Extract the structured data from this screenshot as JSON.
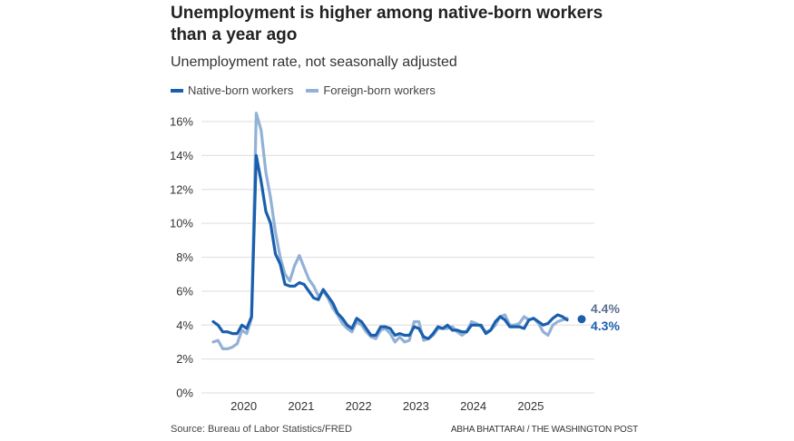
{
  "title": "Unemployment is higher among native-born workers than a year ago",
  "subtitle": "Unemployment rate, not seasonally adjusted",
  "source": "Source: Bureau of Labor Statistics/FRED",
  "credit": "ABHA BHATTARAI / THE WASHINGTON POST",
  "colors": {
    "native": "#1a5fad",
    "foreign": "#92b1d6",
    "grid": "#e3e3e3",
    "foreign_label": "#5b7190"
  },
  "chart_data": {
    "type": "line",
    "title": "Unemployment is higher among native-born workers than a year ago",
    "subtitle": "Unemployment rate, not seasonally adjusted",
    "xlabel": "",
    "ylabel": "",
    "x_start": "2019-07",
    "x_frequency": "monthly",
    "ylim": [
      0,
      16
    ],
    "yticks": [
      "0%",
      "2%",
      "4%",
      "6%",
      "8%",
      "10%",
      "12%",
      "14%",
      "16%"
    ],
    "xticks": [
      {
        "label": "2020",
        "index": 6
      },
      {
        "label": "2021",
        "index": 18
      },
      {
        "label": "2022",
        "index": 30
      },
      {
        "label": "2023",
        "index": 42
      },
      {
        "label": "2024",
        "index": 54
      },
      {
        "label": "2025",
        "index": 66
      }
    ],
    "grid": true,
    "legend_position": "top-left",
    "series": [
      {
        "name": "Native-born workers",
        "end_label": "4.3%",
        "values": [
          4.2,
          4.0,
          3.6,
          3.6,
          3.5,
          3.5,
          4.0,
          3.8,
          4.5,
          14.0,
          12.5,
          10.7,
          10.0,
          8.2,
          7.6,
          6.4,
          6.3,
          6.3,
          6.5,
          6.4,
          6.0,
          5.6,
          5.5,
          6.1,
          5.7,
          5.3,
          4.7,
          4.4,
          4.0,
          3.8,
          4.4,
          4.2,
          3.8,
          3.4,
          3.4,
          3.9,
          3.9,
          3.8,
          3.4,
          3.5,
          3.4,
          3.4,
          3.9,
          3.8,
          3.3,
          3.2,
          3.5,
          3.9,
          3.8,
          4.0,
          3.7,
          3.7,
          3.6,
          3.6,
          4.0,
          4.0,
          4.0,
          3.5,
          3.7,
          4.2,
          4.5,
          4.3,
          3.9,
          3.9,
          3.9,
          3.8,
          4.3,
          4.4,
          4.2,
          4.0,
          4.1,
          4.4,
          4.6,
          4.5,
          4.3
        ]
      },
      {
        "name": "Foreign-born workers",
        "end_label": "4.4%",
        "values": [
          3.0,
          3.1,
          2.6,
          2.6,
          2.7,
          2.9,
          3.7,
          3.5,
          4.4,
          16.5,
          15.5,
          13.0,
          11.5,
          9.5,
          8.0,
          7.0,
          6.6,
          7.5,
          8.1,
          7.4,
          6.7,
          6.3,
          5.7,
          6.0,
          5.6,
          5.0,
          4.6,
          4.1,
          3.8,
          3.6,
          4.2,
          4.0,
          3.6,
          3.3,
          3.2,
          3.7,
          3.8,
          3.5,
          3.0,
          3.3,
          3.0,
          3.1,
          4.2,
          4.2,
          3.1,
          3.2,
          3.4,
          3.8,
          3.8,
          3.8,
          3.9,
          3.6,
          3.4,
          3.6,
          4.2,
          4.1,
          3.9,
          3.6,
          3.7,
          4.0,
          4.5,
          4.6,
          4.0,
          4.0,
          4.1,
          4.5,
          4.3,
          4.4,
          4.1,
          3.6,
          3.4,
          4.0,
          4.2,
          4.3,
          4.4
        ]
      }
    ]
  }
}
